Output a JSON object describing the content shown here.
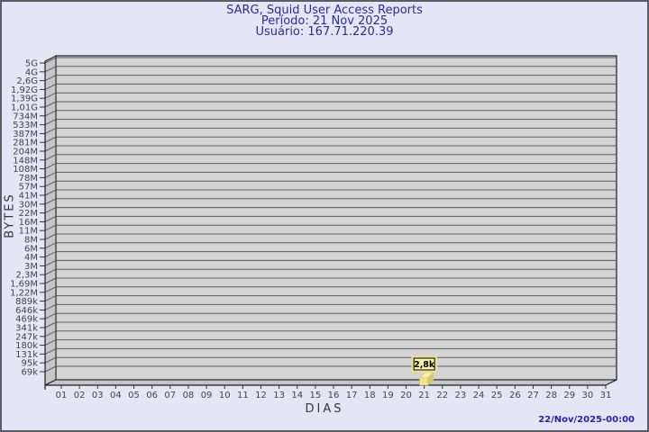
{
  "header": {
    "title": "SARG, Squid User Access Reports",
    "period": "Período: 21 Nov 2025",
    "user": "Usuário: 167.71.220.39"
  },
  "footer": {
    "timestamp": "22/Nov/2025-00:00"
  },
  "chart_data": {
    "type": "bar",
    "style": "3d-bar",
    "title": "SARG, Squid User Access Reports",
    "subtitle_lines": [
      "Período: 21 Nov 2025",
      "Usuário: 167.71.220.39"
    ],
    "xlabel": "DIAS",
    "ylabel": "BYTES",
    "y_scale": "log",
    "grid": true,
    "legend": "none",
    "categories": [
      "01",
      "02",
      "03",
      "04",
      "05",
      "06",
      "07",
      "08",
      "09",
      "10",
      "11",
      "12",
      "13",
      "14",
      "15",
      "16",
      "17",
      "18",
      "19",
      "20",
      "21",
      "22",
      "23",
      "24",
      "25",
      "26",
      "27",
      "28",
      "29",
      "30",
      "31"
    ],
    "values": [
      0,
      0,
      0,
      0,
      0,
      0,
      0,
      0,
      0,
      0,
      0,
      0,
      0,
      0,
      0,
      0,
      0,
      0,
      0,
      0,
      2800,
      0,
      0,
      0,
      0,
      0,
      0,
      0,
      0,
      0,
      0
    ],
    "annotations": [
      {
        "category": "21",
        "label": "2,8k",
        "value_bytes": 2800
      }
    ],
    "y_tick_labels": [
      "5G",
      "4G",
      "2,6G",
      "1,92G",
      "1,39G",
      "1,01G",
      "734M",
      "533M",
      "387M",
      "281M",
      "204M",
      "148M",
      "108M",
      "78M",
      "57M",
      "41M",
      "30M",
      "22M",
      "16M",
      "11M",
      "8M",
      "6M",
      "4M",
      "3M",
      "2,3M",
      "1,69M",
      "1,22M",
      "889k",
      "646k",
      "469k",
      "341k",
      "247k",
      "180k",
      "131k",
      "95k",
      "69k"
    ],
    "colors": {
      "page_bg": "#e5e5f5",
      "plot_bg": "#d4d4d4",
      "wall": "#c6c6c6",
      "grid_line": "#5e5e5e",
      "axis_line": "#1c1c1c",
      "tick_text": "#44444c",
      "title_text": "#2b2b9e",
      "timestamp_text": "#2323ab",
      "bar_front": "#efe48a",
      "bar_top": "#f6efb0",
      "bar_side": "#d8c86c",
      "tag_bg": "#f9f3ae",
      "tag_border": "#000000",
      "tag_glow": "#ece28e"
    }
  }
}
